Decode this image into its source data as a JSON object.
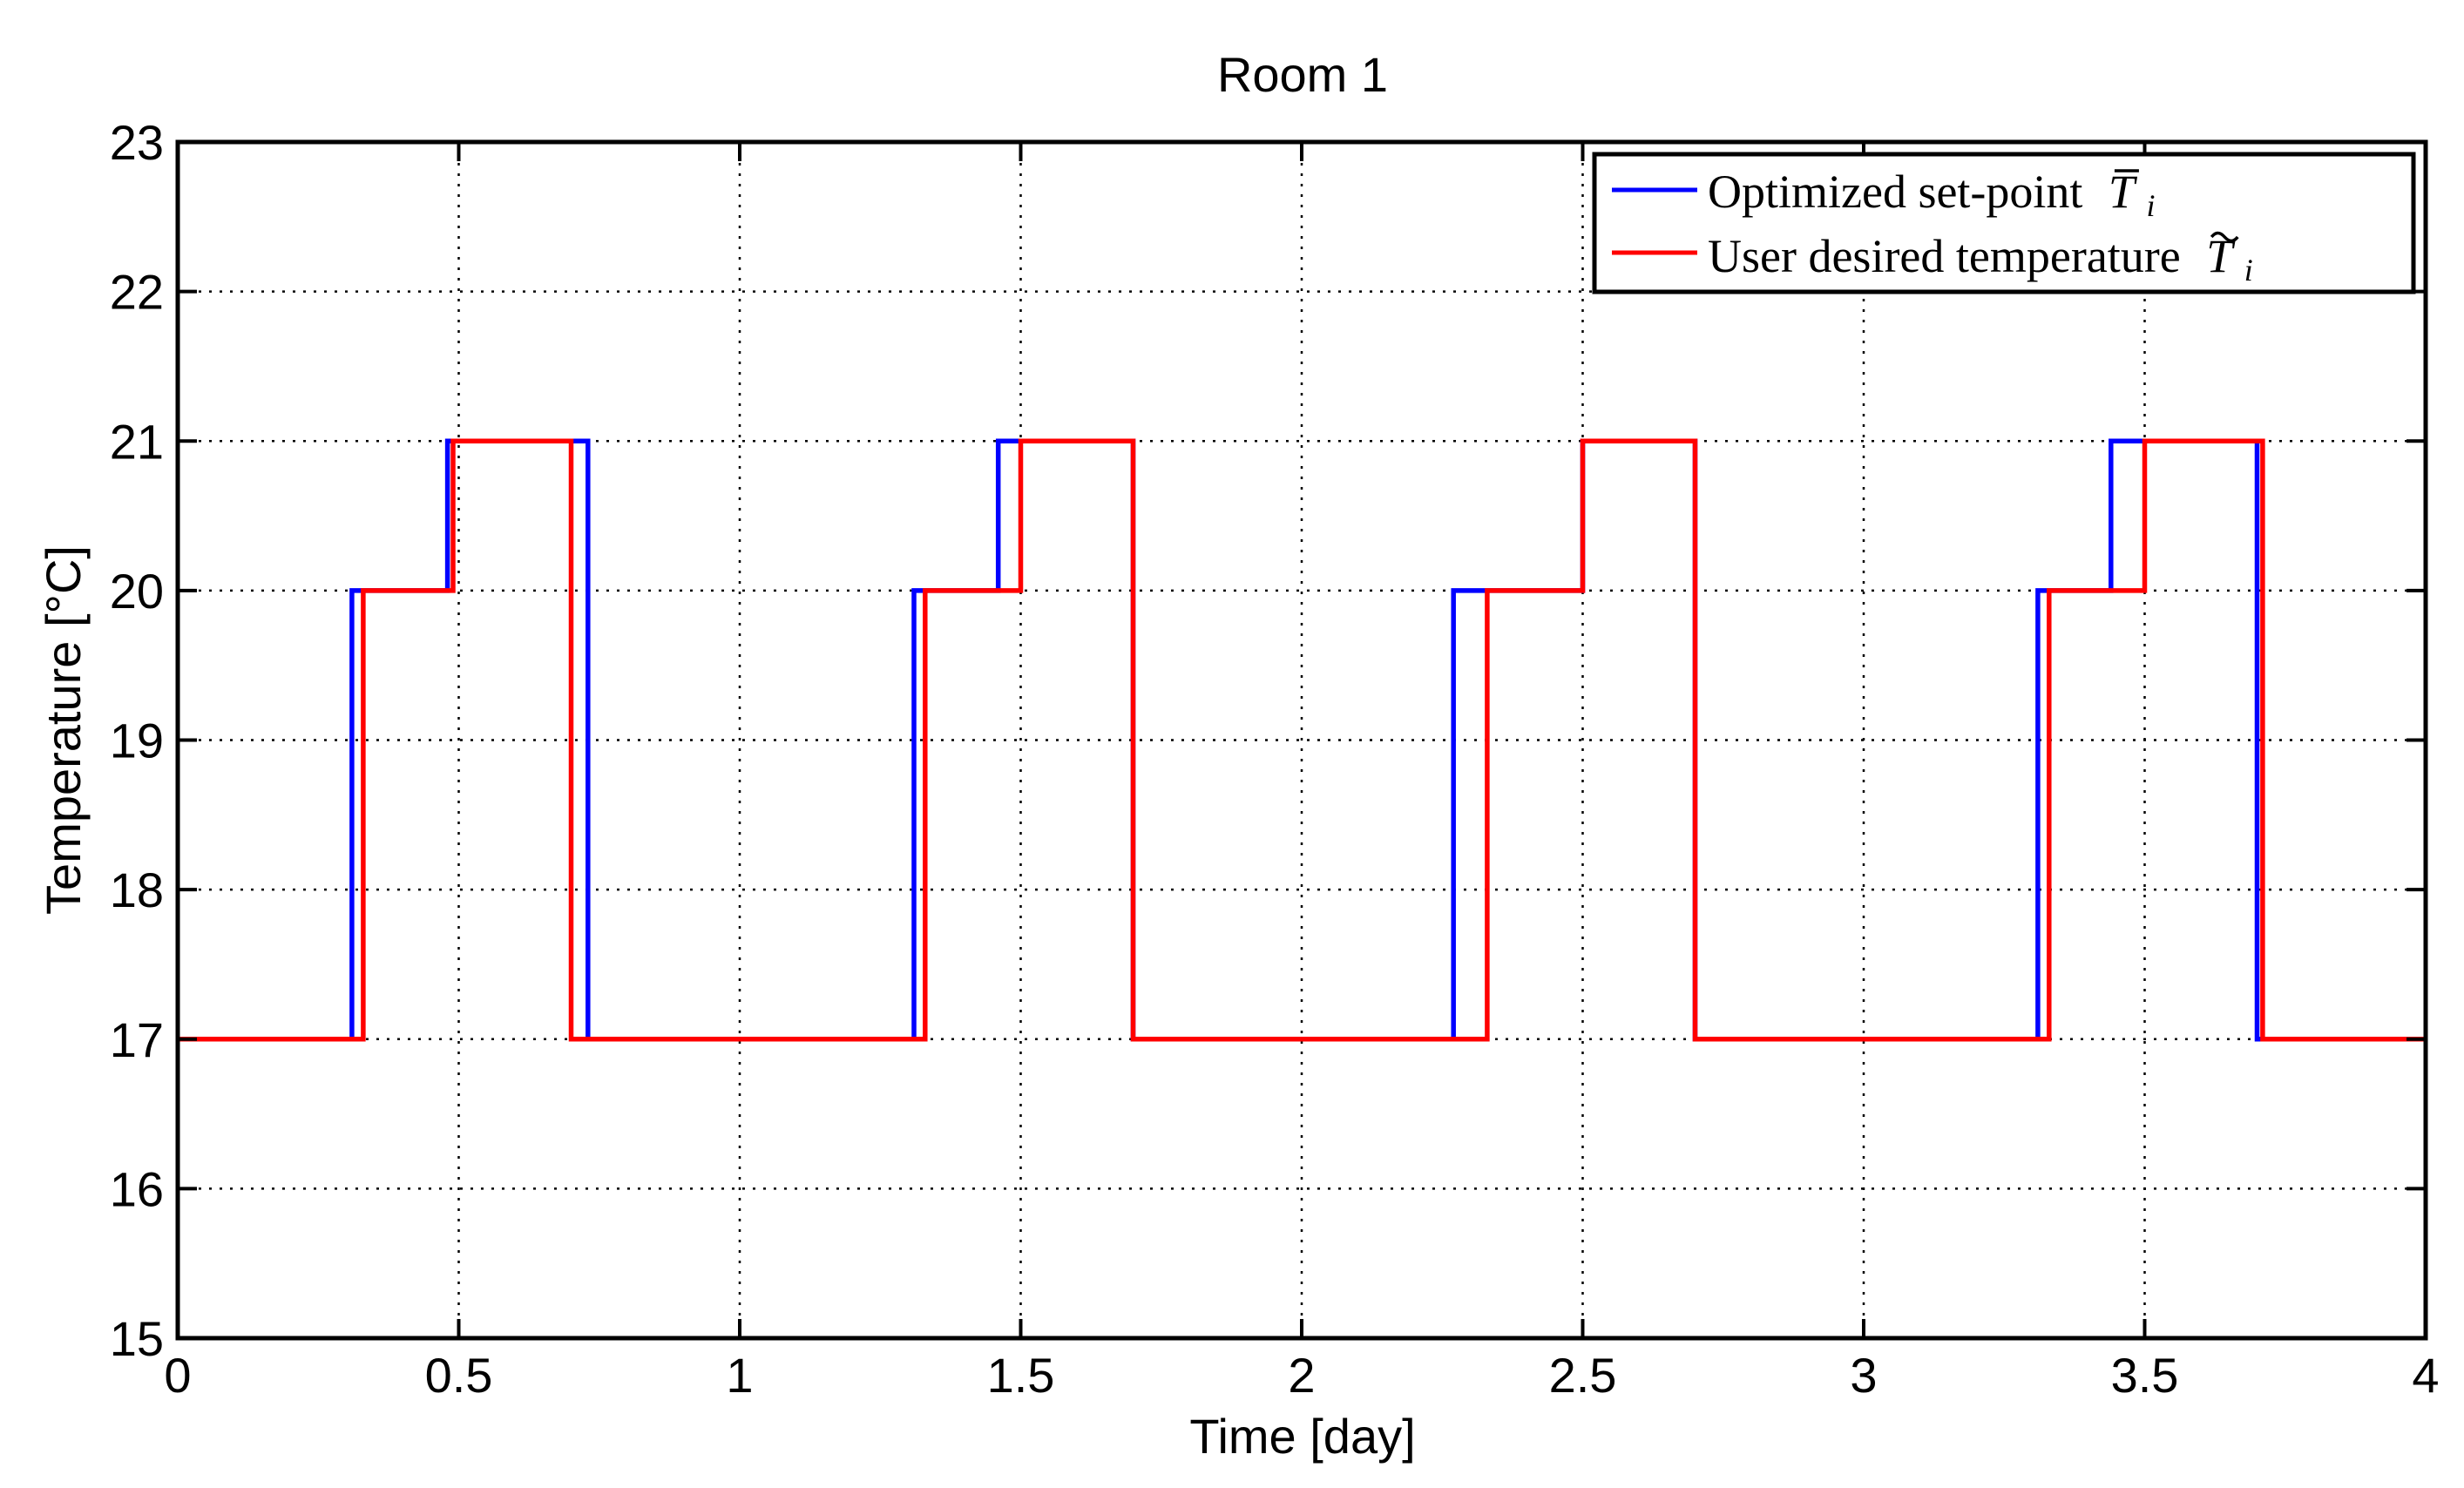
{
  "chart_data": {
    "type": "line",
    "title": "Room 1",
    "xlabel": "Time [day]",
    "ylabel": "Temperature [°C]",
    "xlim": [
      0,
      4
    ],
    "ylim": [
      15,
      23
    ],
    "x_ticks": [
      0,
      0.5,
      1,
      1.5,
      2,
      2.5,
      3,
      3.5,
      4
    ],
    "x_tick_labels": [
      "0",
      "0.5",
      "1",
      "1.5",
      "2",
      "2.5",
      "3",
      "3.5",
      "4"
    ],
    "y_ticks": [
      15,
      16,
      17,
      18,
      19,
      20,
      21,
      22,
      23
    ],
    "y_tick_labels": [
      "15",
      "16",
      "17",
      "18",
      "19",
      "20",
      "21",
      "22",
      "23"
    ],
    "grid": true,
    "legend_position": "top-right",
    "series": [
      {
        "name": "Optimized set-point",
        "symbol_base": "T",
        "symbol_accent": "bar",
        "symbol_sub": "i",
        "color": "#0000ff",
        "x": [
          0,
          0.31,
          0.31,
          0.48,
          0.48,
          0.73,
          0.73,
          1.31,
          1.31,
          1.46,
          1.46,
          1.7,
          1.7,
          2.27,
          2.27,
          2.5,
          2.5,
          2.7,
          2.7,
          3.31,
          3.31,
          3.44,
          3.44,
          3.7,
          3.7,
          4.0
        ],
        "y": [
          17,
          17,
          20,
          20,
          21,
          21,
          17,
          17,
          20,
          20,
          21,
          21,
          17,
          17,
          20,
          20,
          21,
          21,
          17,
          17,
          20,
          20,
          21,
          21,
          17,
          17
        ]
      },
      {
        "name": "User desired temperature",
        "symbol_base": "T",
        "symbol_accent": "tilde",
        "symbol_sub": "i",
        "color": "#ff0000",
        "x": [
          0,
          0.33,
          0.33,
          0.49,
          0.49,
          0.7,
          0.7,
          1.33,
          1.33,
          1.5,
          1.5,
          1.7,
          1.7,
          2.33,
          2.33,
          2.5,
          2.5,
          2.7,
          2.7,
          3.33,
          3.33,
          3.5,
          3.5,
          3.71,
          3.71,
          4.0
        ],
        "y": [
          17,
          17,
          20,
          20,
          21,
          21,
          17,
          17,
          20,
          20,
          21,
          21,
          17,
          17,
          20,
          20,
          21,
          21,
          17,
          17,
          20,
          20,
          21,
          21,
          17,
          17
        ]
      }
    ]
  }
}
